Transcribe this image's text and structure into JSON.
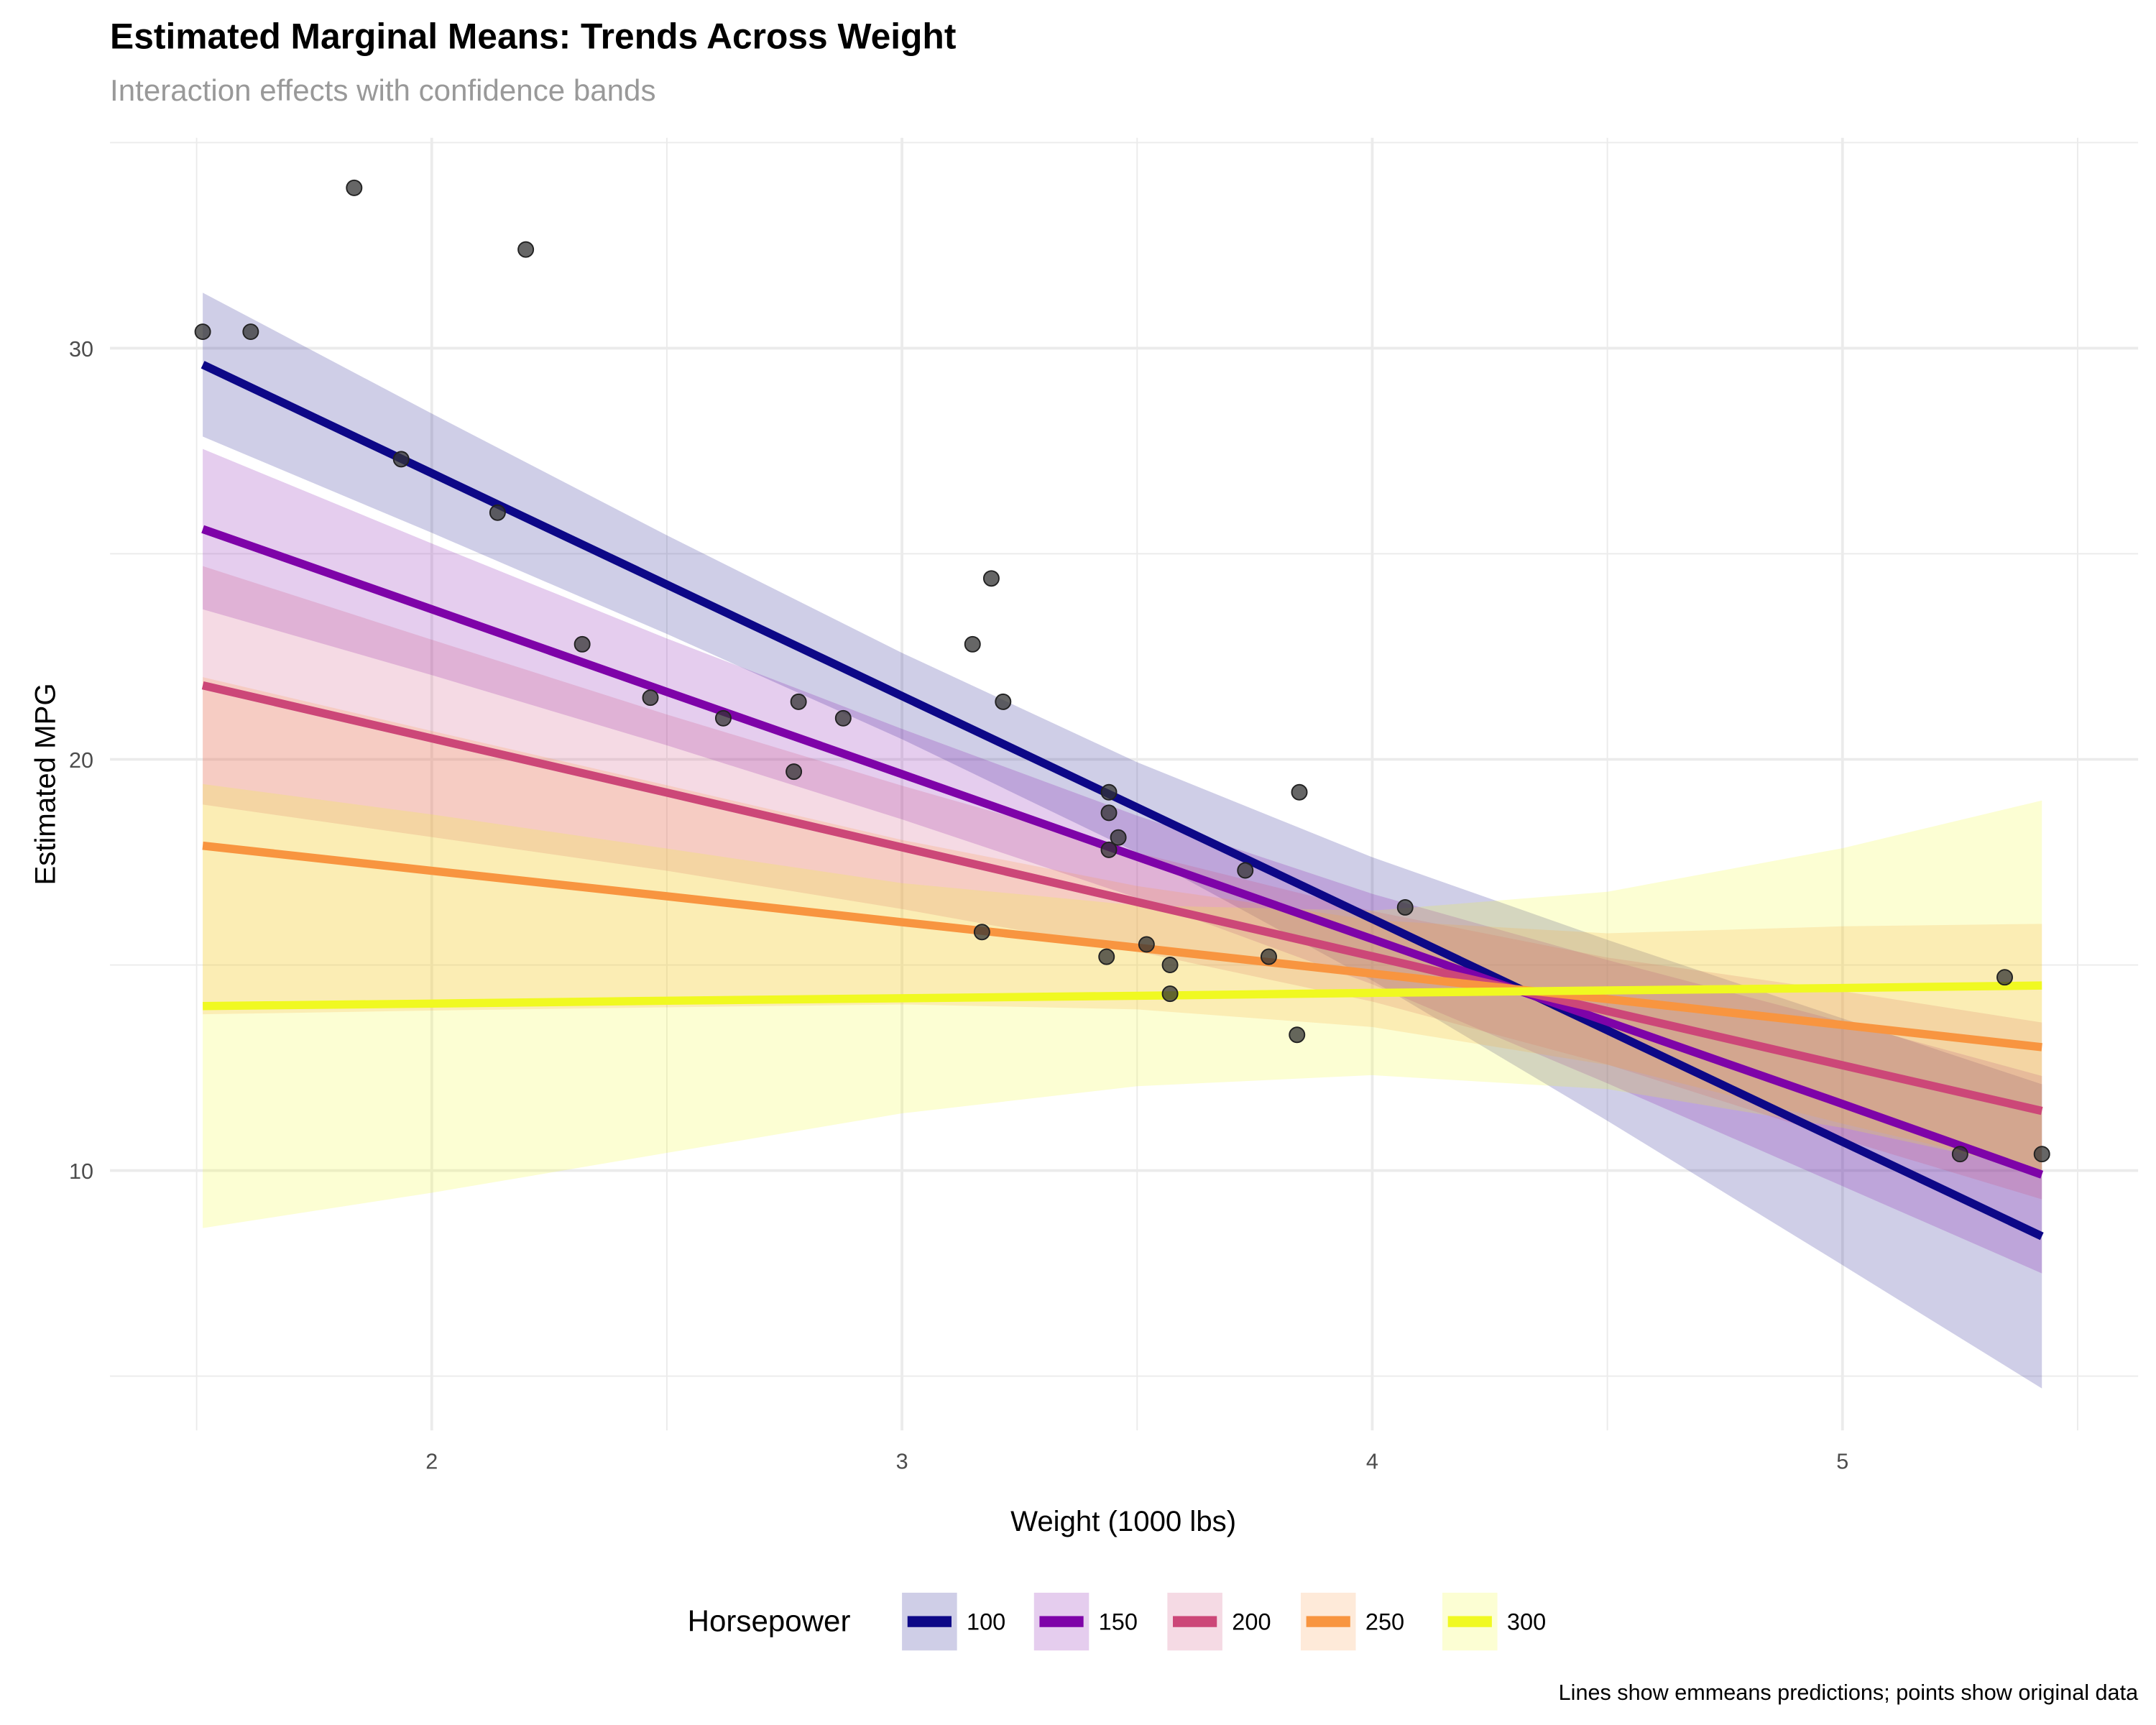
{
  "chart_data": {
    "type": "line",
    "title": "Estimated Marginal Means: Trends Across Weight",
    "subtitle": "Interaction effects with confidence bands",
    "xlabel": "Weight (1000 lbs)",
    "ylabel": "Estimated MPG",
    "caption": "Lines show emmeans predictions; points show original data",
    "xlim": [
      1.33,
      5.6
    ],
    "ylim": [
      3.7,
      35.1
    ],
    "xticks": [
      "2",
      "3",
      "4",
      "5"
    ],
    "yticks": [
      "10",
      "20",
      "30"
    ],
    "grid": true,
    "legend": {
      "title": "Horsepower",
      "placement": "bottom"
    },
    "x": [
      1.513,
      2.0,
      2.5,
      3.0,
      3.5,
      4.0,
      4.5,
      5.0,
      5.424
    ],
    "series": [
      {
        "name": "100",
        "color": "#0d0887",
        "values": [
          29.6,
          26.96,
          24.25,
          21.54,
          18.83,
          16.12,
          13.41,
          10.7,
          8.4
        ],
        "lower": [
          27.85,
          25.51,
          23.05,
          20.49,
          17.73,
          14.62,
          11.21,
          7.7,
          4.7
        ],
        "upper": [
          31.35,
          28.41,
          25.45,
          22.59,
          19.93,
          17.62,
          15.61,
          13.7,
          12.1
        ]
      },
      {
        "name": "150",
        "color": "#7e03a8",
        "values": [
          25.6,
          23.65,
          21.64,
          19.64,
          17.63,
          15.63,
          13.62,
          11.62,
          9.9
        ],
        "lower": [
          23.65,
          22.05,
          20.34,
          18.54,
          16.63,
          14.53,
          12.12,
          9.62,
          7.5
        ],
        "upper": [
          27.55,
          25.25,
          22.94,
          20.74,
          18.63,
          16.73,
          15.12,
          13.62,
          12.3
        ]
      },
      {
        "name": "200",
        "color": "#cc4778",
        "values": [
          21.8,
          20.51,
          19.19,
          17.86,
          16.53,
          15.21,
          13.88,
          12.56,
          11.45
        ],
        "lower": [
          18.9,
          18.11,
          17.29,
          16.36,
          15.33,
          14.11,
          12.58,
          10.76,
          9.3
        ],
        "upper": [
          24.7,
          22.91,
          21.09,
          19.36,
          17.73,
          16.31,
          15.18,
          14.36,
          13.6
        ]
      },
      {
        "name": "250",
        "color": "#f89540",
        "values": [
          17.9,
          17.29,
          16.67,
          16.04,
          15.42,
          14.79,
          14.17,
          13.54,
          13.0
        ],
        "lower": [
          13.8,
          13.89,
          13.97,
          14.04,
          13.92,
          13.49,
          12.57,
          11.14,
          10.0
        ],
        "upper": [
          22.0,
          20.69,
          19.37,
          18.04,
          16.92,
          16.09,
          15.77,
          15.94,
          16.0
        ]
      },
      {
        "name": "300",
        "color": "#f0f921",
        "values": [
          14.0,
          14.06,
          14.13,
          14.19,
          14.25,
          14.32,
          14.38,
          14.44,
          14.5
        ],
        "lower": [
          8.6,
          9.46,
          10.43,
          11.39,
          12.05,
          12.32,
          11.98,
          11.04,
          10.0
        ],
        "upper": [
          19.4,
          18.66,
          17.83,
          16.99,
          16.45,
          16.32,
          16.78,
          17.84,
          19.0
        ]
      }
    ],
    "points": {
      "wt": [
        2.62,
        2.875,
        2.32,
        3.215,
        3.44,
        3.46,
        3.57,
        3.19,
        3.15,
        3.44,
        3.44,
        4.07,
        3.73,
        3.78,
        5.25,
        5.424,
        5.345,
        2.2,
        1.615,
        1.835,
        2.465,
        3.52,
        3.435,
        3.84,
        3.845,
        1.935,
        2.14,
        1.513,
        3.17,
        2.77,
        3.57,
        2.78
      ],
      "mpg": [
        21.0,
        21.0,
        22.8,
        21.4,
        18.7,
        18.1,
        14.3,
        24.4,
        22.8,
        19.2,
        17.8,
        16.4,
        17.3,
        15.2,
        10.4,
        10.4,
        14.7,
        32.4,
        30.4,
        33.9,
        21.5,
        15.5,
        15.2,
        13.3,
        19.2,
        27.3,
        26.0,
        30.4,
        15.8,
        19.7,
        15.0,
        21.4
      ],
      "color": "#333333"
    }
  }
}
